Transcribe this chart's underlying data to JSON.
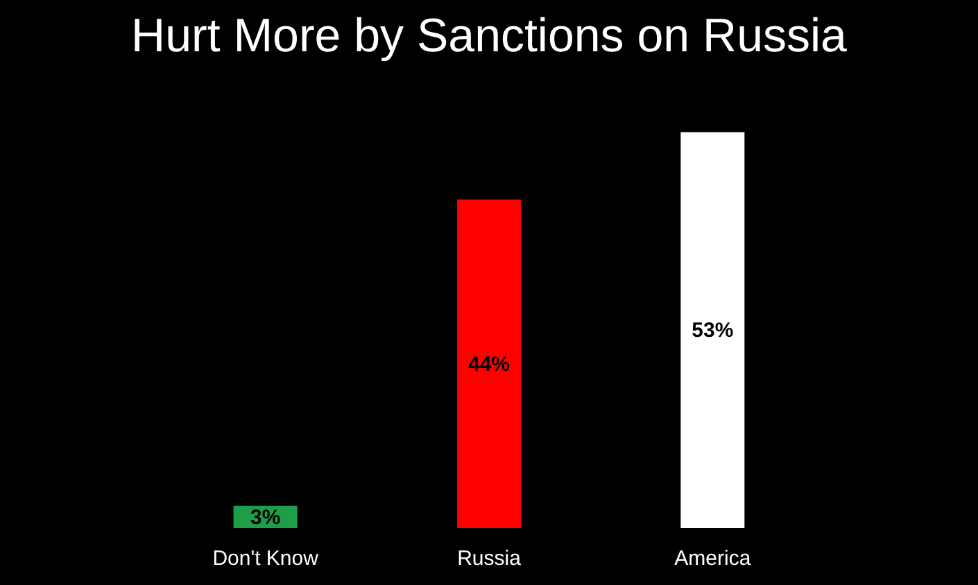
{
  "chart_data": {
    "type": "bar",
    "title": "Hurt More by Sanctions on Russia",
    "categories": [
      "Don't Know",
      "Russia",
      "America"
    ],
    "values": [
      3,
      44,
      53
    ],
    "colors": [
      "#1f9e4a",
      "#ff0000",
      "#ffffff"
    ],
    "value_labels": [
      "3%",
      "44%",
      "53%"
    ],
    "grid": false
  }
}
